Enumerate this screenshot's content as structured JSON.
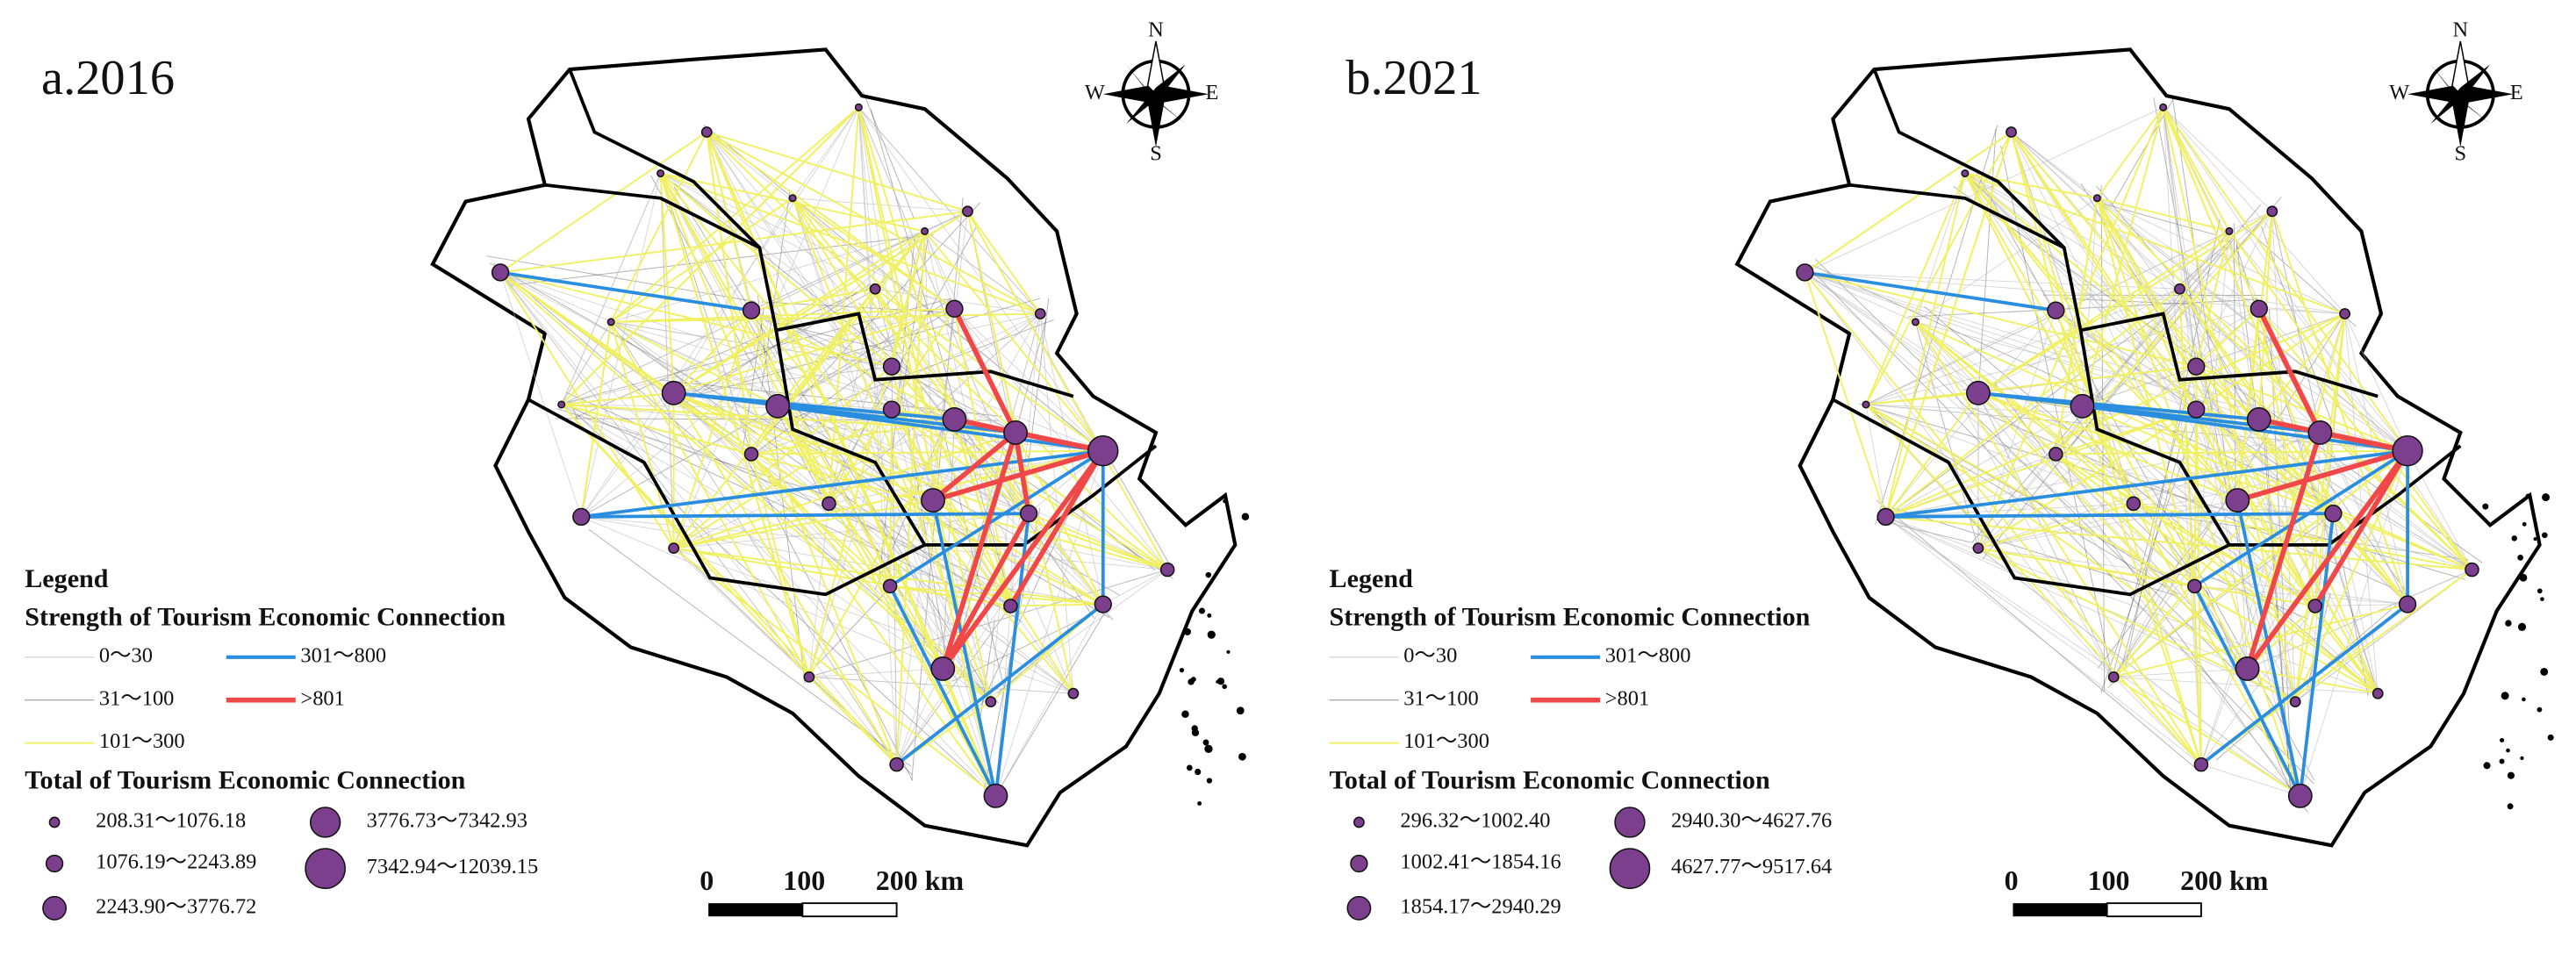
{
  "panels": [
    {
      "title": "a.2016",
      "compass": [
        "N",
        "S",
        "W",
        "E"
      ],
      "scale_bar": [
        "0",
        "100",
        "200 km"
      ],
      "legend": {
        "heading": "Legend",
        "strength_title": "Strength of Tourism Economic Connection",
        "strength_classes": [
          "0～30",
          "31～100",
          "101～300",
          "301～800",
          ">801"
        ],
        "total_title": "Total of Tourism Economic Connection",
        "total_classes": [
          "208.31～1076.18",
          "1076.19～2243.89",
          "2243.90～3776.72",
          "3776.73～7342.93",
          "7342.94～12039.15"
        ]
      }
    },
    {
      "title": "b.2021",
      "compass": [
        "N",
        "S",
        "W",
        "E"
      ],
      "scale_bar": [
        "0",
        "100",
        "200 km"
      ],
      "legend": {
        "heading": "Legend",
        "strength_title": "Strength of Tourism Economic Connection",
        "strength_classes": [
          "0～30",
          "31～100",
          "101～300",
          "301～800",
          ">801"
        ],
        "total_title": "Total of Tourism Economic Connection",
        "total_classes": [
          "296.32～1002.40",
          "1002.41～1854.16",
          "1854.17～2940.29",
          "2940.30～4627.76",
          "4627.77～9517.64"
        ]
      }
    }
  ]
}
